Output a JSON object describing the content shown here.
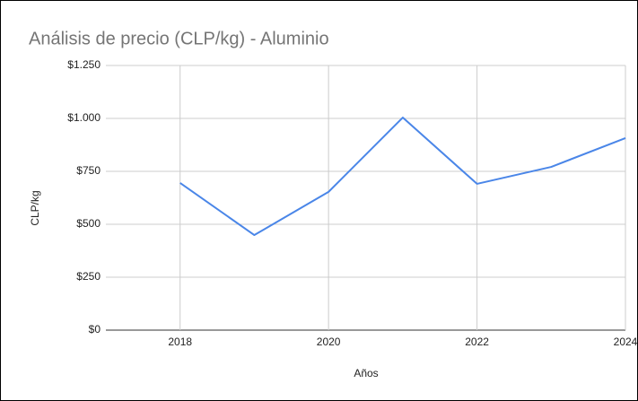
{
  "chart_data": {
    "type": "line",
    "title": "Análisis de precio (CLP/kg) - Aluminio",
    "x_label": "Años",
    "y_label": "CLP/kg",
    "x": [
      2018,
      2019,
      2020,
      2021,
      2022,
      2023,
      2024
    ],
    "series": [
      {
        "name": "CLP/kg",
        "color": "#4a86e8",
        "values": [
          695,
          449,
          653,
          1004,
          691,
          771,
          907
        ]
      }
    ],
    "xlim": [
      2017,
      2024
    ],
    "xticks": [
      2018,
      2020,
      2022,
      2024
    ],
    "ylim": [
      0,
      1250
    ],
    "yticks": [
      {
        "value": 0,
        "label": "$0"
      },
      {
        "value": 250,
        "label": "$250"
      },
      {
        "value": 500,
        "label": "$500"
      },
      {
        "value": 750,
        "label": "$750"
      },
      {
        "value": 1000,
        "label": "$1.000"
      },
      {
        "value": 1250,
        "label": "$1.250"
      }
    ],
    "grid": true
  }
}
